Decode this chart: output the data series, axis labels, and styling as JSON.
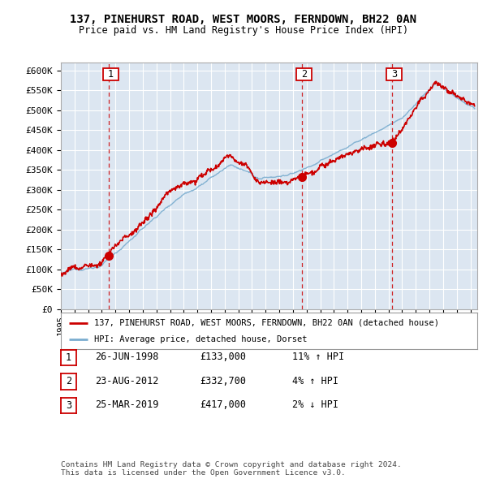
{
  "title": "137, PINEHURST ROAD, WEST MOORS, FERNDOWN, BH22 0AN",
  "subtitle": "Price paid vs. HM Land Registry's House Price Index (HPI)",
  "background_color": "#ffffff",
  "plot_bg_color": "#dce6f1",
  "grid_color": "#ffffff",
  "ylim": [
    0,
    620000
  ],
  "yticks": [
    0,
    50000,
    100000,
    150000,
    200000,
    250000,
    300000,
    350000,
    400000,
    450000,
    500000,
    550000,
    600000
  ],
  "ytick_labels": [
    "£0",
    "£50K",
    "£100K",
    "£150K",
    "£200K",
    "£250K",
    "£300K",
    "£350K",
    "£400K",
    "£450K",
    "£500K",
    "£550K",
    "£600K"
  ],
  "xlim": [
    1995,
    2025.5
  ],
  "sale_dates_num": [
    1998.48,
    2012.64,
    2019.23
  ],
  "sale_prices": [
    133000,
    332700,
    417000
  ],
  "sale_labels": [
    "1",
    "2",
    "3"
  ],
  "legend_house": "137, PINEHURST ROAD, WEST MOORS, FERNDOWN, BH22 0AN (detached house)",
  "legend_hpi": "HPI: Average price, detached house, Dorset",
  "table_rows": [
    {
      "num": "1",
      "date": "26-JUN-1998",
      "price": "£133,000",
      "pct": "11%",
      "dir": "↑",
      "label": "HPI"
    },
    {
      "num": "2",
      "date": "23-AUG-2012",
      "price": "£332,700",
      "pct": "4%",
      "dir": "↑",
      "label": "HPI"
    },
    {
      "num": "3",
      "date": "25-MAR-2019",
      "price": "£417,000",
      "pct": "2%",
      "dir": "↓",
      "label": "HPI"
    }
  ],
  "footer": "Contains HM Land Registry data © Crown copyright and database right 2024.\nThis data is licensed under the Open Government Licence v3.0.",
  "house_line_color": "#cc0000",
  "hpi_line_color": "#7aadcf",
  "dot_color": "#cc0000",
  "sale_box_border": "#cc0000",
  "dashed_line_color": "#cc0000"
}
